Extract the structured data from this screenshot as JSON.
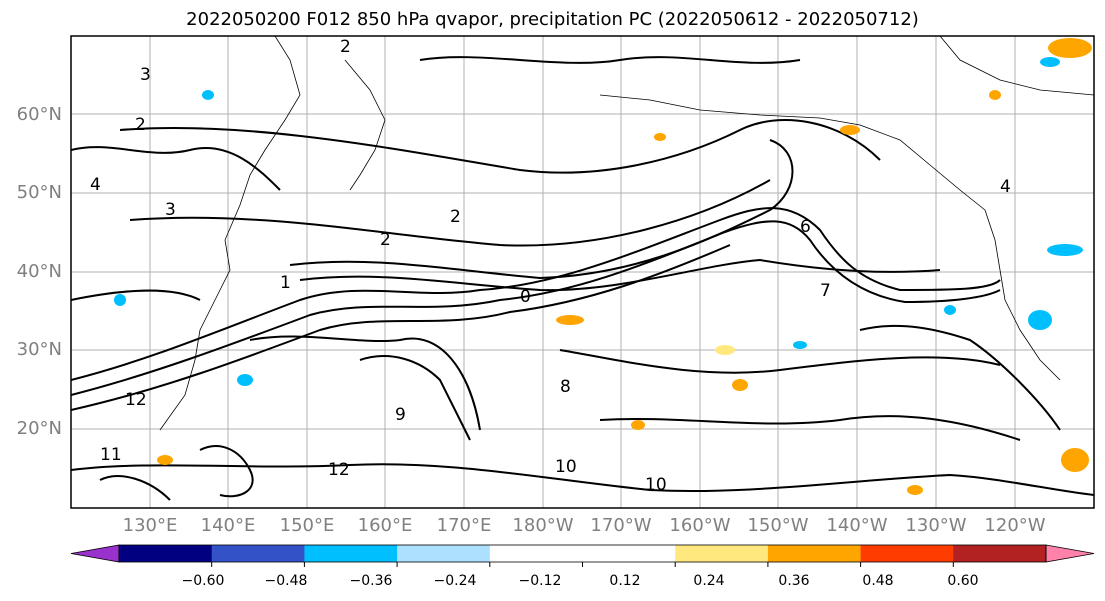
{
  "title": "2022050200 F012 850 hPa qvapor, precipitation PC (2022050612 - 2022050712)",
  "map": {
    "lat_labels": [
      "60°N",
      "50°N",
      "40°N",
      "30°N",
      "20°N"
    ],
    "lon_labels": [
      "130°E",
      "140°E",
      "150°E",
      "160°E",
      "170°E",
      "180°W",
      "170°W",
      "160°W",
      "150°W",
      "140°W",
      "130°W",
      "120°W"
    ],
    "contour_labels": [
      "2",
      "3",
      "2",
      "2",
      "2",
      "4",
      "3",
      "1",
      "0",
      "6",
      "7",
      "9",
      "8",
      "10",
      "12",
      "10",
      "11",
      "12",
      "4"
    ]
  },
  "colorbar": {
    "colors": [
      "#9932CC",
      "#000080",
      "#3452C8",
      "#00BFFF",
      "#ADDFFF",
      "#FFFFFF",
      "#FFFFFF",
      "#FFE97F",
      "#FFA500",
      "#FF3C00",
      "#B22222",
      "#FF82AB"
    ],
    "tick_labels": [
      "−0.60",
      "−0.48",
      "−0.36",
      "−0.24",
      "−0.12",
      "0.12",
      "0.24",
      "0.36",
      "0.48",
      "0.60"
    ]
  }
}
